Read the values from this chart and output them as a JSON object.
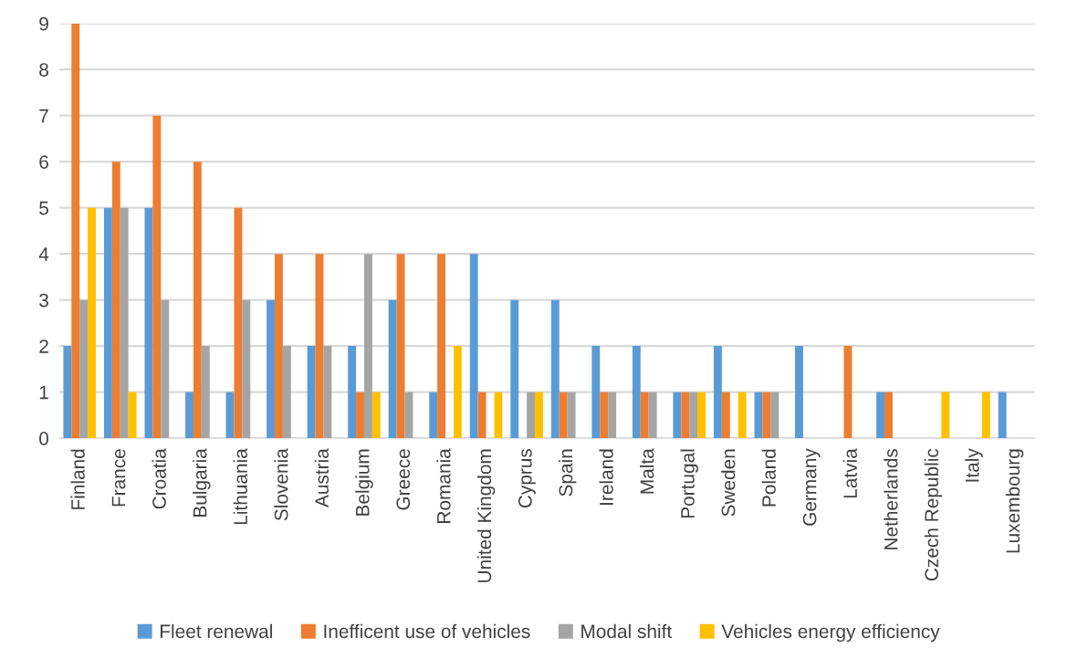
{
  "chart_data": {
    "type": "bar",
    "categories": [
      "Finland",
      "France",
      "Croatia",
      "Bulgaria",
      "Lithuania",
      "Slovenia",
      "Austria",
      "Belgium",
      "Greece",
      "Romania",
      "United Kingdom",
      "Cyprus",
      "Spain",
      "Ireland",
      "Malta",
      "Portugal",
      "Sweden",
      "Poland",
      "Germany",
      "Latvia",
      "Netherlands",
      "Czech Republic",
      "Italy",
      "Luxembourg"
    ],
    "series": [
      {
        "name": "Fleet renewal",
        "color": "#5b9bd5",
        "values": [
          2,
          5,
          5,
          1,
          1,
          3,
          2,
          2,
          3,
          1,
          4,
          3,
          3,
          2,
          2,
          1,
          2,
          1,
          2,
          0,
          1,
          0,
          0,
          1
        ]
      },
      {
        "name": "Inefficent use of vehicles",
        "color": "#ed7d31",
        "values": [
          9,
          6,
          7,
          6,
          5,
          4,
          4,
          1,
          4,
          4,
          1,
          0,
          1,
          1,
          1,
          1,
          1,
          1,
          0,
          2,
          1,
          0,
          0,
          0
        ]
      },
      {
        "name": "Modal shift",
        "color": "#a5a5a5",
        "values": [
          3,
          5,
          3,
          2,
          3,
          2,
          2,
          4,
          1,
          0,
          0,
          1,
          1,
          1,
          1,
          1,
          0,
          1,
          0,
          0,
          0,
          0,
          0,
          0
        ]
      },
      {
        "name": "Vehicles energy efficiency",
        "color": "#ffc000",
        "values": [
          5,
          1,
          0,
          0,
          0,
          0,
          0,
          1,
          0,
          2,
          1,
          1,
          0,
          0,
          0,
          1,
          1,
          0,
          0,
          0,
          0,
          1,
          1,
          0
        ]
      }
    ],
    "ylim": [
      0,
      9
    ],
    "yticks": [
      0,
      1,
      2,
      3,
      4,
      5,
      6,
      7,
      8,
      9
    ],
    "grid": "y",
    "legend": "bottom"
  }
}
